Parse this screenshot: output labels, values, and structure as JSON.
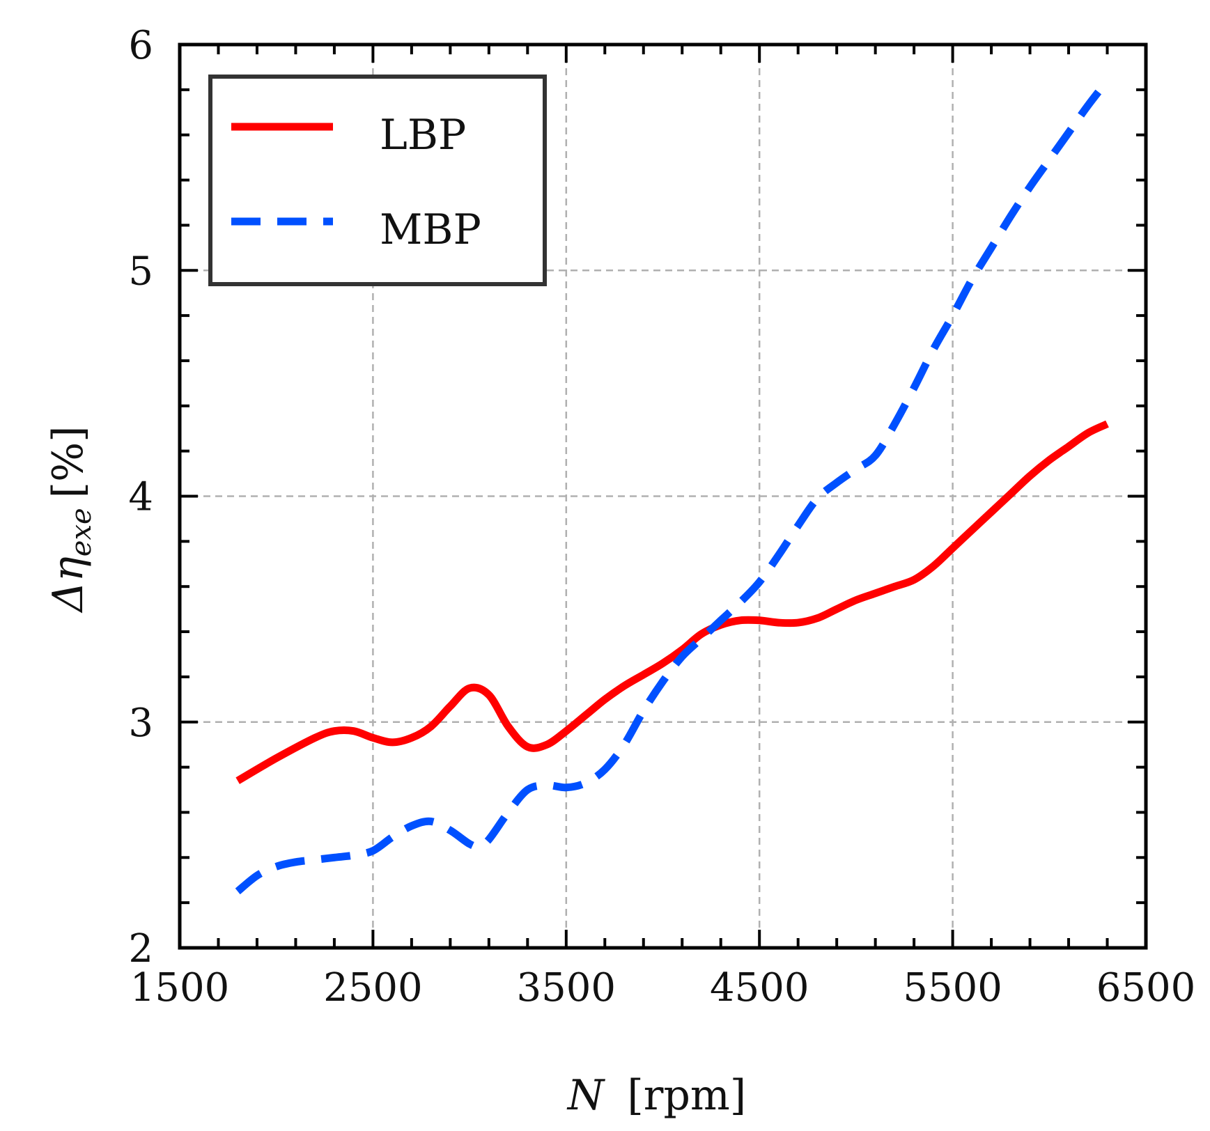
{
  "chart_data": {
    "type": "line",
    "xlabel_symbol": "N",
    "xlabel_unit": "[rpm]",
    "ylabel_prefix": "Δη",
    "ylabel_subscript": "exe",
    "ylabel_unit": "[%]",
    "xlim": [
      1500,
      6500
    ],
    "ylim": [
      2,
      6
    ],
    "xticks": [
      "1500",
      "2500",
      "3500",
      "4500",
      "5500",
      "6500"
    ],
    "yticks": [
      "2",
      "3",
      "4",
      "5",
      "6"
    ],
    "grid": true,
    "legend_position": "top-left",
    "series": [
      {
        "name": "LBP",
        "color": "#ff0000",
        "style": "solid",
        "x": [
          1800,
          2000,
          2200,
          2300,
          2400,
          2500,
          2600,
          2700,
          2800,
          2900,
          3000,
          3100,
          3200,
          3300,
          3400,
          3500,
          3600,
          3700,
          3800,
          3900,
          4000,
          4100,
          4200,
          4300,
          4400,
          4500,
          4600,
          4700,
          4800,
          4900,
          5000,
          5100,
          5200,
          5300,
          5400,
          5500,
          5600,
          5700,
          5800,
          5900,
          6000,
          6100,
          6200,
          6300
        ],
        "y": [
          2.74,
          2.84,
          2.93,
          2.96,
          2.96,
          2.93,
          2.91,
          2.93,
          2.98,
          3.07,
          3.15,
          3.12,
          2.98,
          2.89,
          2.9,
          2.96,
          3.03,
          3.1,
          3.16,
          3.21,
          3.26,
          3.32,
          3.39,
          3.43,
          3.45,
          3.45,
          3.44,
          3.44,
          3.46,
          3.5,
          3.54,
          3.57,
          3.6,
          3.63,
          3.69,
          3.77,
          3.85,
          3.93,
          4.01,
          4.09,
          4.16,
          4.22,
          4.28,
          4.32
        ]
      },
      {
        "name": "MBP",
        "color": "#0050ff",
        "style": "dashed",
        "x": [
          1800,
          1900,
          2000,
          2100,
          2200,
          2300,
          2400,
          2500,
          2600,
          2700,
          2800,
          2900,
          3000,
          3050,
          3100,
          3200,
          3300,
          3400,
          3500,
          3600,
          3700,
          3800,
          3900,
          4000,
          4100,
          4200,
          4300,
          4400,
          4500,
          4600,
          4700,
          4800,
          4900,
          5000,
          5100,
          5200,
          5300,
          5400,
          5500,
          5600,
          5700,
          5800,
          5900,
          6000,
          6100,
          6200,
          6300
        ],
        "y": [
          2.25,
          2.32,
          2.36,
          2.38,
          2.39,
          2.4,
          2.41,
          2.43,
          2.49,
          2.54,
          2.56,
          2.52,
          2.46,
          2.45,
          2.48,
          2.6,
          2.7,
          2.72,
          2.71,
          2.73,
          2.79,
          2.9,
          3.05,
          3.18,
          3.29,
          3.37,
          3.45,
          3.53,
          3.62,
          3.74,
          3.87,
          3.99,
          4.06,
          4.12,
          4.18,
          4.32,
          4.48,
          4.65,
          4.8,
          4.96,
          5.1,
          5.24,
          5.37,
          5.49,
          5.61,
          5.73,
          5.84
        ]
      }
    ]
  }
}
